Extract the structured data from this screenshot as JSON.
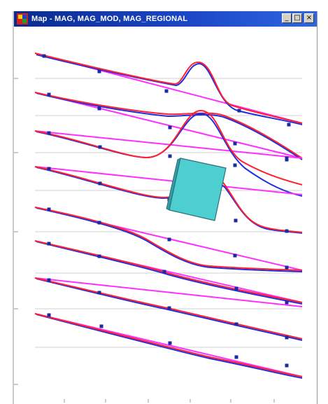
{
  "window": {
    "title": "Map - MAG, MAG_MOD, MAG_REGIONAL",
    "minimize_glyph": "_",
    "maximize_glyph": "□",
    "close_glyph": "×"
  },
  "icons": {
    "app": "map-app-icon",
    "minimize": "minimize-icon",
    "maximize": "maximize-icon",
    "close": "close-icon"
  },
  "legend_series": [
    "MAG",
    "MAG_MOD",
    "MAG_REGIONAL"
  ],
  "colors": {
    "titlebar": "#0a2a8e",
    "mag": "#1f2fe0",
    "mag_mod": "#ff2030",
    "mag_regional": "#ff30ff",
    "body_fill": "#4ecfcf",
    "body_stroke": "#2f6f78",
    "gridline": "#d0d0d0"
  }
}
